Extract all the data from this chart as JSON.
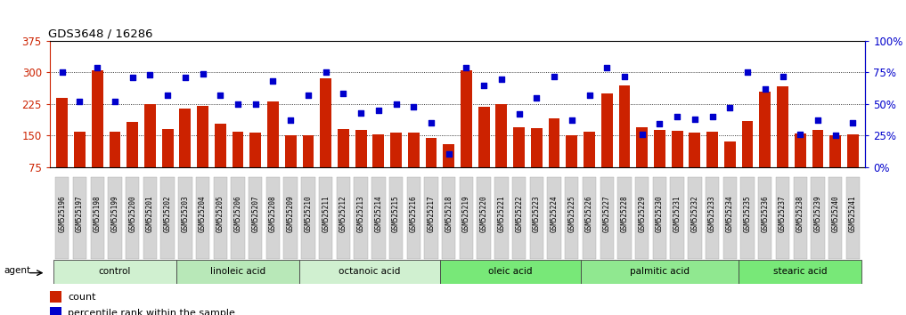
{
  "title": "GDS3648 / 16286",
  "samples": [
    "GSM525196",
    "GSM525197",
    "GSM525198",
    "GSM525199",
    "GSM525200",
    "GSM525201",
    "GSM525202",
    "GSM525203",
    "GSM525204",
    "GSM525205",
    "GSM525206",
    "GSM525207",
    "GSM525208",
    "GSM525209",
    "GSM525210",
    "GSM525211",
    "GSM525212",
    "GSM525213",
    "GSM525214",
    "GSM525215",
    "GSM525216",
    "GSM525217",
    "GSM525218",
    "GSM525219",
    "GSM525220",
    "GSM525221",
    "GSM525222",
    "GSM525223",
    "GSM525224",
    "GSM525225",
    "GSM525226",
    "GSM525227",
    "GSM525228",
    "GSM525229",
    "GSM525230",
    "GSM525231",
    "GSM525232",
    "GSM525233",
    "GSM525234",
    "GSM525235",
    "GSM525236",
    "GSM525237",
    "GSM525238",
    "GSM525239",
    "GSM525240",
    "GSM525241"
  ],
  "counts": [
    240,
    160,
    305,
    160,
    183,
    225,
    165,
    215,
    220,
    178,
    158,
    157,
    230,
    150,
    150,
    285,
    165,
    163,
    153,
    157,
    157,
    145,
    130,
    305,
    218,
    225,
    170,
    168,
    190,
    150,
    160,
    250,
    270,
    170,
    163,
    162,
    157,
    160,
    135,
    185,
    255,
    268,
    155,
    163,
    150,
    153
  ],
  "percentiles": [
    75,
    52,
    79,
    52,
    71,
    73,
    57,
    71,
    74,
    57,
    50,
    50,
    68,
    37,
    57,
    75,
    58,
    43,
    45,
    50,
    48,
    35,
    10,
    79,
    65,
    70,
    42,
    55,
    72,
    37,
    57,
    79,
    72,
    26,
    34,
    40,
    38,
    40,
    47,
    75,
    62,
    72,
    26,
    37,
    25,
    35
  ],
  "groups": [
    {
      "label": "control",
      "start": 0,
      "end": 7
    },
    {
      "label": "linoleic acid",
      "start": 7,
      "end": 14
    },
    {
      "label": "octanoic acid",
      "start": 14,
      "end": 22
    },
    {
      "label": "oleic acid",
      "start": 22,
      "end": 30
    },
    {
      "label": "palmitic acid",
      "start": 30,
      "end": 39
    },
    {
      "label": "stearic acid",
      "start": 39,
      "end": 46
    }
  ],
  "group_colors": [
    "#c8f0c8",
    "#b0e8b0",
    "#c8f0c8",
    "#70d870",
    "#88e088",
    "#70d870"
  ],
  "ylim_left": [
    75,
    375
  ],
  "ylim_right": [
    0,
    100
  ],
  "bar_color": "#cc2200",
  "dot_color": "#0000cc",
  "bg_color": "#ffffff",
  "tick_color_left": "#cc2200",
  "tick_color_right": "#0000cc",
  "left_ticks": [
    75,
    150,
    225,
    300,
    375
  ],
  "right_ticks": [
    0,
    25,
    50,
    75,
    100
  ],
  "legend_count_label": "count",
  "legend_pct_label": "percentile rank within the sample",
  "agent_label": "agent"
}
